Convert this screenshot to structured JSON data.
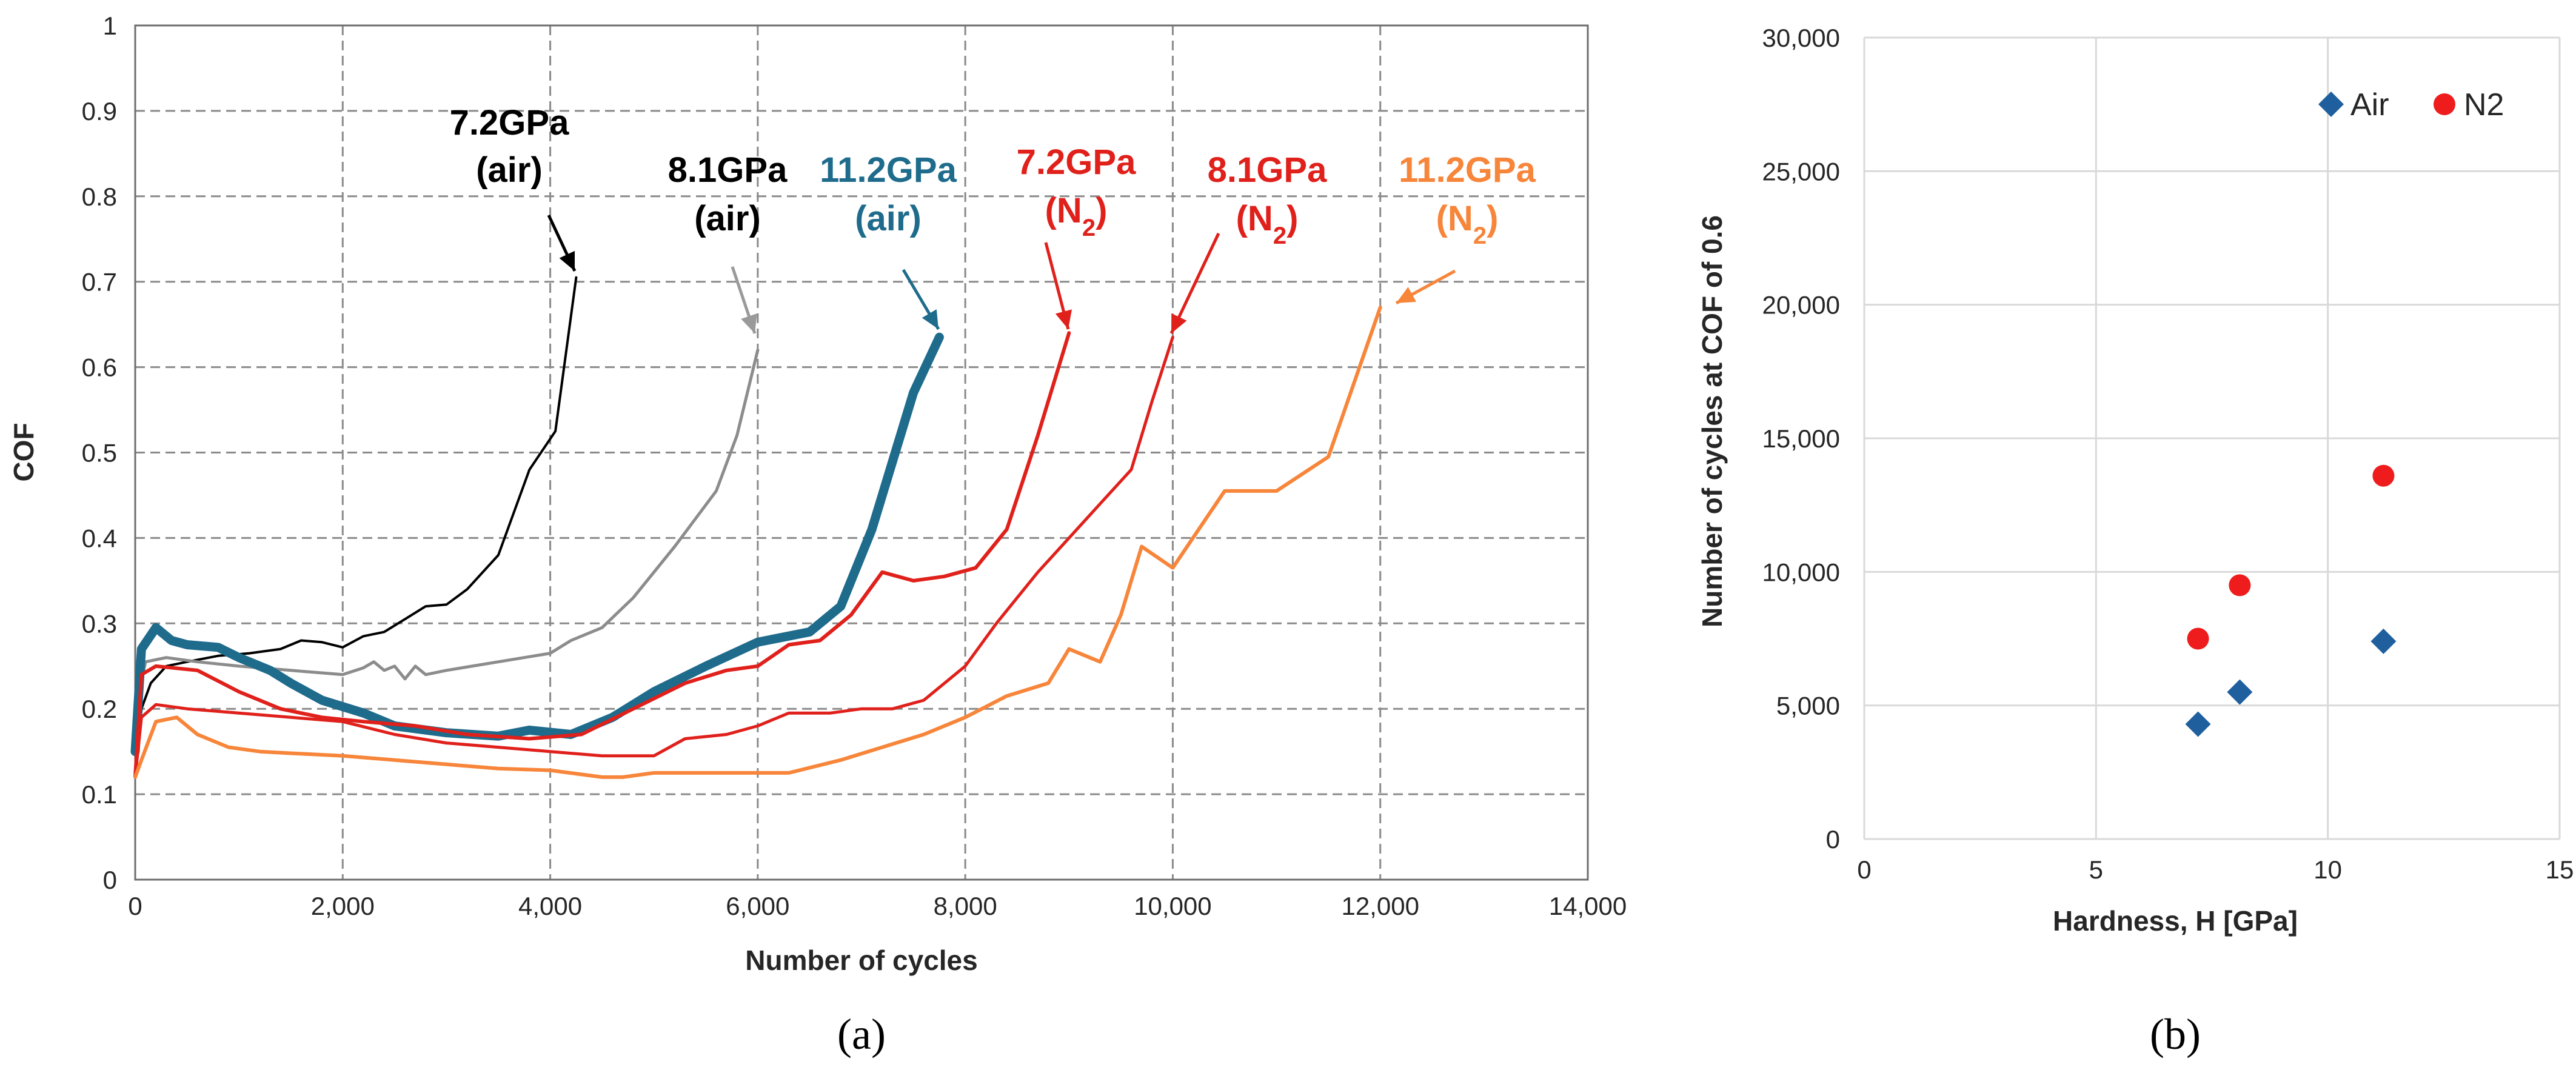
{
  "chart_data": [
    {
      "type": "line",
      "panel_label": "(a)",
      "xlabel": "Number of cycles",
      "ylabel": "COF",
      "xlim": [
        0,
        14000
      ],
      "ylim": [
        0,
        1
      ],
      "x_ticks": [
        "0",
        "2,000",
        "4,000",
        "6,000",
        "8,000",
        "10,000",
        "12,000",
        "14,000"
      ],
      "y_ticks": [
        "0",
        "0.1",
        "0.2",
        "0.3",
        "0.4",
        "0.5",
        "0.6",
        "0.7",
        "0.8",
        "0.9",
        "1"
      ],
      "grid": "dashed",
      "series": [
        {
          "name": "7.2GPa (air)",
          "color": "#000000",
          "points": [
            [
              0,
              0.12
            ],
            [
              60,
              0.2
            ],
            [
              150,
              0.23
            ],
            [
              300,
              0.25
            ],
            [
              500,
              0.255
            ],
            [
              800,
              0.262
            ],
            [
              1100,
              0.265
            ],
            [
              1400,
              0.27
            ],
            [
              1600,
              0.28
            ],
            [
              1800,
              0.278
            ],
            [
              2000,
              0.272
            ],
            [
              2200,
              0.285
            ],
            [
              2400,
              0.29
            ],
            [
              2600,
              0.305
            ],
            [
              2800,
              0.32
            ],
            [
              3000,
              0.322
            ],
            [
              3200,
              0.34
            ],
            [
              3500,
              0.38
            ],
            [
              3800,
              0.48
            ],
            [
              4050,
              0.525
            ],
            [
              4250,
              0.705
            ]
          ]
        },
        {
          "name": "8.1GPa (air)",
          "color": "#8c8c8c",
          "points": [
            [
              0,
              0.2
            ],
            [
              100,
              0.255
            ],
            [
              300,
              0.26
            ],
            [
              600,
              0.255
            ],
            [
              1000,
              0.25
            ],
            [
              1500,
              0.245
            ],
            [
              2000,
              0.24
            ],
            [
              2200,
              0.248
            ],
            [
              2300,
              0.255
            ],
            [
              2400,
              0.245
            ],
            [
              2500,
              0.25
            ],
            [
              2600,
              0.235
            ],
            [
              2700,
              0.25
            ],
            [
              2800,
              0.24
            ],
            [
              3000,
              0.245
            ],
            [
              3500,
              0.255
            ],
            [
              4000,
              0.265
            ],
            [
              4200,
              0.28
            ],
            [
              4500,
              0.295
            ],
            [
              4800,
              0.33
            ],
            [
              5200,
              0.39
            ],
            [
              5600,
              0.455
            ],
            [
              5800,
              0.52
            ],
            [
              6000,
              0.62
            ]
          ]
        },
        {
          "name": "11.2GPa (air)",
          "color": "#1f6b8c",
          "points": [
            [
              0,
              0.15
            ],
            [
              60,
              0.27
            ],
            [
              200,
              0.295
            ],
            [
              350,
              0.28
            ],
            [
              500,
              0.275
            ],
            [
              800,
              0.272
            ],
            [
              1000,
              0.26
            ],
            [
              1300,
              0.245
            ],
            [
              1500,
              0.23
            ],
            [
              1800,
              0.21
            ],
            [
              2200,
              0.195
            ],
            [
              2500,
              0.18
            ],
            [
              3000,
              0.172
            ],
            [
              3500,
              0.168
            ],
            [
              3800,
              0.175
            ],
            [
              4200,
              0.17
            ],
            [
              4600,
              0.19
            ],
            [
              5000,
              0.22
            ],
            [
              5500,
              0.25
            ],
            [
              6000,
              0.278
            ],
            [
              6500,
              0.29
            ],
            [
              6800,
              0.32
            ],
            [
              7100,
              0.41
            ],
            [
              7500,
              0.57
            ],
            [
              7750,
              0.635
            ]
          ]
        },
        {
          "name": "7.2GPa (N2)",
          "color": "#e0201b",
          "points": [
            [
              0,
              0.12
            ],
            [
              60,
              0.24
            ],
            [
              200,
              0.25
            ],
            [
              600,
              0.245
            ],
            [
              1000,
              0.22
            ],
            [
              1400,
              0.2
            ],
            [
              1800,
              0.19
            ],
            [
              2200,
              0.185
            ],
            [
              2700,
              0.18
            ],
            [
              3200,
              0.17
            ],
            [
              3800,
              0.165
            ],
            [
              4300,
              0.17
            ],
            [
              4800,
              0.2
            ],
            [
              5300,
              0.23
            ],
            [
              5700,
              0.245
            ],
            [
              6000,
              0.25
            ],
            [
              6300,
              0.275
            ],
            [
              6600,
              0.28
            ],
            [
              6900,
              0.31
            ],
            [
              7200,
              0.36
            ],
            [
              7500,
              0.35
            ],
            [
              7800,
              0.355
            ],
            [
              8100,
              0.365
            ],
            [
              8400,
              0.41
            ],
            [
              8700,
              0.52
            ],
            [
              9000,
              0.64
            ]
          ]
        },
        {
          "name": "8.1GPa (N2)",
          "color": "#e0201b",
          "points": [
            [
              0,
              0.12
            ],
            [
              60,
              0.19
            ],
            [
              200,
              0.205
            ],
            [
              500,
              0.2
            ],
            [
              1000,
              0.195
            ],
            [
              1500,
              0.19
            ],
            [
              2000,
              0.185
            ],
            [
              2500,
              0.17
            ],
            [
              3000,
              0.16
            ],
            [
              3500,
              0.155
            ],
            [
              4000,
              0.15
            ],
            [
              4500,
              0.145
            ],
            [
              5000,
              0.145
            ],
            [
              5300,
              0.165
            ],
            [
              5700,
              0.17
            ],
            [
              6000,
              0.18
            ],
            [
              6300,
              0.195
            ],
            [
              6700,
              0.195
            ],
            [
              7000,
              0.2
            ],
            [
              7300,
              0.2
            ],
            [
              7600,
              0.21
            ],
            [
              8000,
              0.25
            ],
            [
              8300,
              0.3
            ],
            [
              8700,
              0.36
            ],
            [
              9000,
              0.4
            ],
            [
              9300,
              0.44
            ],
            [
              9600,
              0.48
            ],
            [
              9800,
              0.56
            ],
            [
              10000,
              0.635
            ]
          ]
        },
        {
          "name": "11.2GPa (N2)",
          "color": "#f7853a",
          "points": [
            [
              0,
              0.12
            ],
            [
              60,
              0.14
            ],
            [
              200,
              0.185
            ],
            [
              400,
              0.19
            ],
            [
              600,
              0.17
            ],
            [
              900,
              0.155
            ],
            [
              1200,
              0.15
            ],
            [
              1500,
              0.148
            ],
            [
              2000,
              0.145
            ],
            [
              2500,
              0.14
            ],
            [
              3000,
              0.135
            ],
            [
              3500,
              0.13
            ],
            [
              4000,
              0.128
            ],
            [
              4500,
              0.12
            ],
            [
              4700,
              0.12
            ],
            [
              5000,
              0.125
            ],
            [
              5500,
              0.125
            ],
            [
              6000,
              0.125
            ],
            [
              6300,
              0.125
            ],
            [
              6800,
              0.14
            ],
            [
              7200,
              0.155
            ],
            [
              7600,
              0.17
            ],
            [
              8000,
              0.19
            ],
            [
              8400,
              0.215
            ],
            [
              8800,
              0.23
            ],
            [
              9000,
              0.27
            ],
            [
              9300,
              0.255
            ],
            [
              9500,
              0.31
            ],
            [
              9700,
              0.39
            ],
            [
              10000,
              0.365
            ],
            [
              10500,
              0.455
            ],
            [
              11000,
              0.455
            ],
            [
              11500,
              0.495
            ],
            [
              12000,
              0.67
            ]
          ]
        }
      ],
      "annotations": [
        {
          "line1": "7.2GPa",
          "line2": "(air)",
          "color": "#000000"
        },
        {
          "line1": "8.1GPa",
          "line2": "(air)",
          "color": "#000000"
        },
        {
          "line1": "11.2GPa",
          "line2": "(air)",
          "color": "#1f6b8c"
        },
        {
          "line1": "7.2GPa",
          "line2": "(N",
          "sub": "2",
          "tail": ")",
          "color": "#e0201b"
        },
        {
          "line1": "8.1GPa",
          "line2": "(N",
          "sub": "2",
          "tail": ")",
          "color": "#e0201b"
        },
        {
          "line1": "11.2GPa",
          "line2": "(N",
          "sub": "2",
          "tail": ")",
          "color": "#f7853a"
        }
      ]
    },
    {
      "type": "scatter",
      "panel_label": "(b)",
      "xlabel": "Hardness, H [GPa]",
      "ylabel": "Number of cycles at COF of 0.6",
      "xlim": [
        0,
        15
      ],
      "ylim": [
        0,
        30000
      ],
      "x_ticks": [
        "0",
        "5",
        "10",
        "15"
      ],
      "y_ticks": [
        "0",
        "5,000",
        "10,000",
        "15,000",
        "20,000",
        "25,000",
        "30,000"
      ],
      "grid": "solid",
      "legend_position": "top-right",
      "series": [
        {
          "name": "Air",
          "marker": "diamond",
          "color": "#1f5f9e",
          "points": [
            [
              7.2,
              4300
            ],
            [
              8.1,
              5500
            ],
            [
              11.2,
              7400
            ]
          ]
        },
        {
          "name": "N2",
          "marker": "circle",
          "color": "#ee1c1c",
          "points": [
            [
              7.2,
              7500
            ],
            [
              8.1,
              9500
            ],
            [
              11.2,
              13600
            ]
          ]
        }
      ]
    }
  ]
}
